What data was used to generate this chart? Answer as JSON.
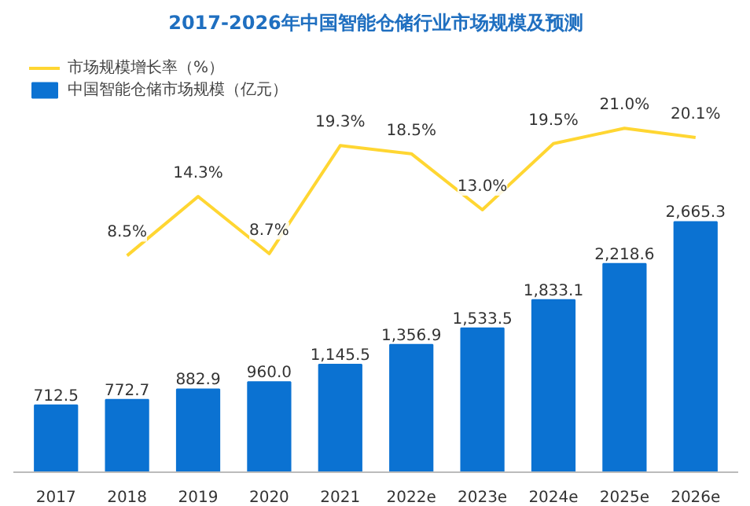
{
  "chart_data": {
    "type": "bar",
    "title": "2017-2026年中国智能仓储行业市场规模及预测",
    "categories": [
      "2017",
      "2018",
      "2019",
      "2020",
      "2021",
      "2022e",
      "2023e",
      "2024e",
      "2025e",
      "2026e"
    ],
    "series": [
      {
        "name": "市场规模增长率（%）",
        "type": "line",
        "axis": "y2",
        "color": "#ffd632",
        "values": [
          null,
          8.5,
          14.3,
          8.7,
          19.3,
          18.5,
          13.0,
          19.5,
          21.0,
          20.1
        ],
        "value_labels": [
          null,
          "8.5%",
          "14.3%",
          "8.7%",
          "19.3%",
          "18.5%",
          "13.0%",
          "19.5%",
          "21.0%",
          "20.1%"
        ]
      },
      {
        "name": "中国智能仓储市场规模（亿元）",
        "color": "#0b72d2",
        "values": [
          712.5,
          772.7,
          882.9,
          960.0,
          1145.5,
          1356.9,
          1533.5,
          1833.1,
          2218.6,
          2665.3
        ],
        "value_labels": [
          "712.5",
          "772.7",
          "882.9",
          "960.0",
          "1,145.5",
          "1,356.9",
          "1,533.5",
          "1,833.1",
          "2,218.6",
          "2,665.3"
        ]
      }
    ],
    "legend": "top left",
    "grid": false,
    "marker": "none",
    "tick_labels": "x"
  }
}
